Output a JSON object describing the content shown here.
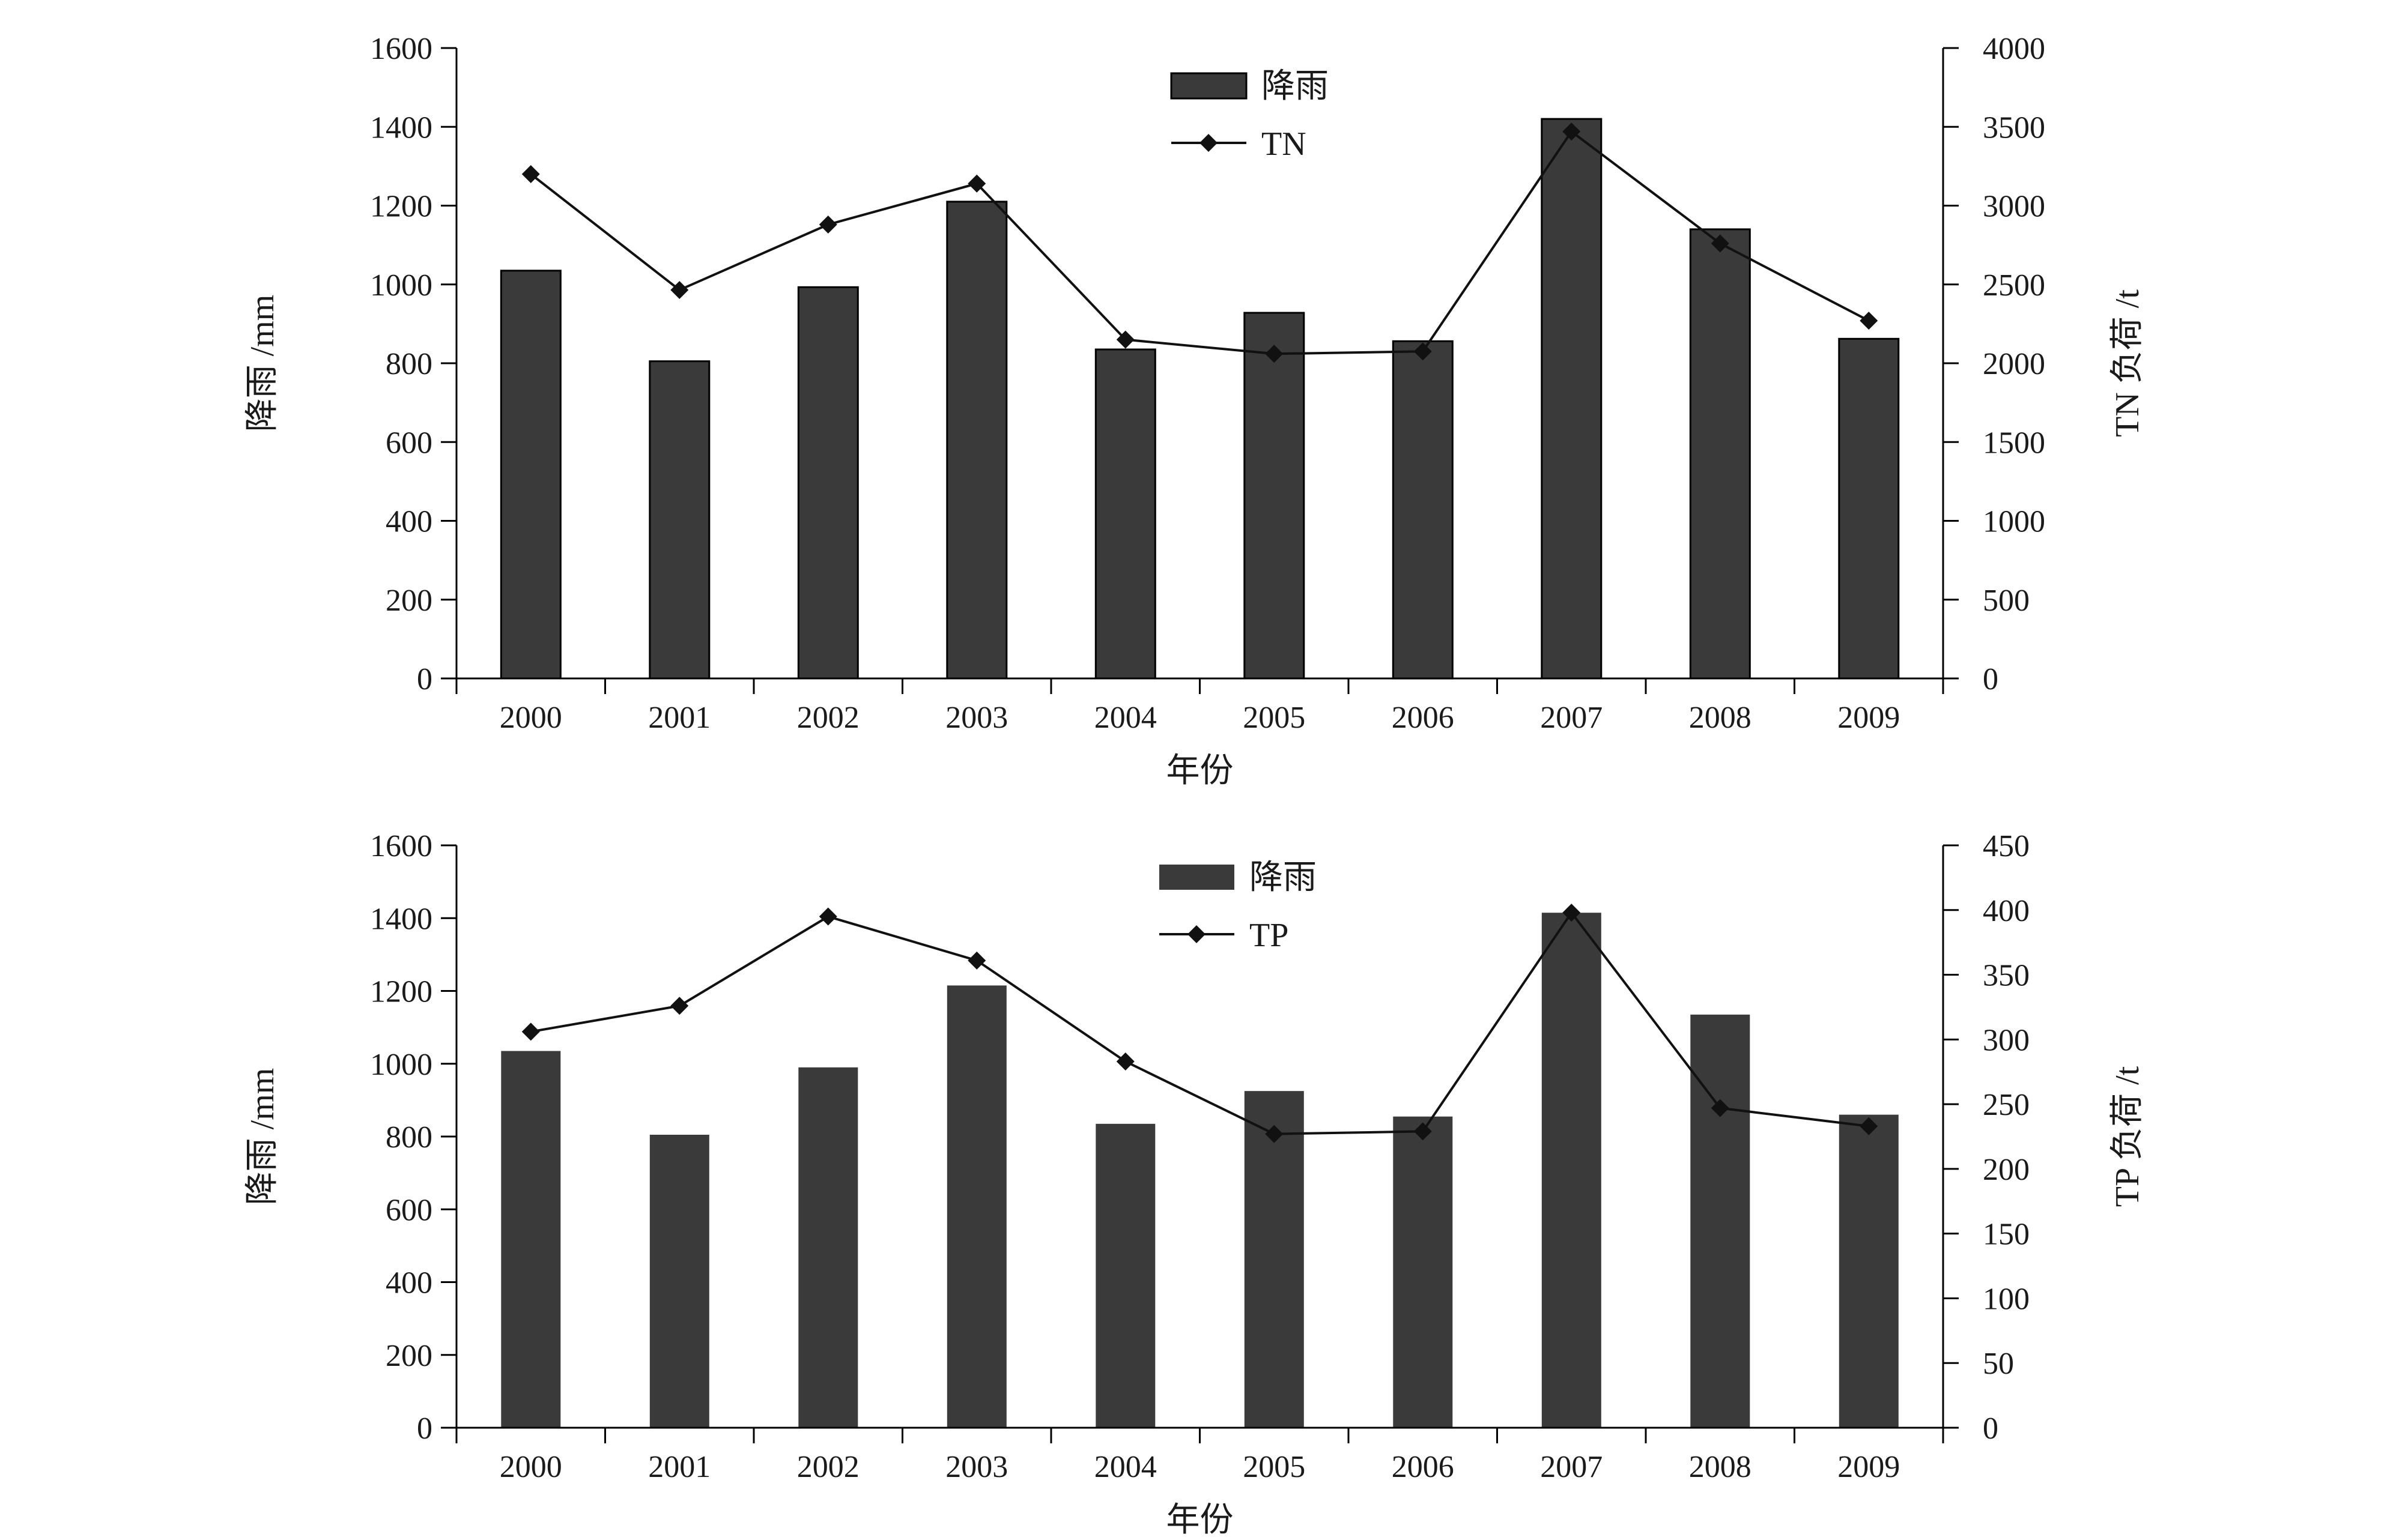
{
  "chart_data": [
    {
      "type": "bar",
      "categories": [
        "2000",
        "2001",
        "2002",
        "2003",
        "2004",
        "2005",
        "2006",
        "2007",
        "2008",
        "2009"
      ],
      "xlabel": "年份",
      "ylabel": "降雨 /mm",
      "y2label": "TN 负荷 /t",
      "ylim": [
        0,
        1600
      ],
      "yticks": [
        "0",
        "200",
        "400",
        "600",
        "800",
        "1000",
        "1200",
        "1400",
        "1600"
      ],
      "y2lim": [
        0,
        4000
      ],
      "y2ticks": [
        "0",
        "500",
        "1000",
        "1500",
        "2000",
        "2500",
        "3000",
        "3500",
        "4000"
      ],
      "legend_position": "top-center",
      "grid": false,
      "series": [
        {
          "name": "降雨",
          "kind": "bar",
          "axis": "left",
          "color": "#3a3a3a",
          "values": [
            1035,
            805,
            993,
            1210,
            835,
            928,
            856,
            1420,
            1140,
            862
          ]
        },
        {
          "name": "TN",
          "kind": "line",
          "axis": "right",
          "color": "#111111",
          "values": [
            3200,
            2465,
            2880,
            3140,
            2150,
            2060,
            2075,
            3470,
            2760,
            2270
          ]
        }
      ]
    },
    {
      "type": "bar",
      "categories": [
        "2000",
        "2001",
        "2002",
        "2003",
        "2004",
        "2005",
        "2006",
        "2007",
        "2008",
        "2009"
      ],
      "xlabel": "年份",
      "ylabel": "降雨 /mm",
      "y2label": "TP 负荷 /t",
      "ylim": [
        0,
        1600
      ],
      "yticks": [
        "0",
        "200",
        "400",
        "600",
        "800",
        "1000",
        "1200",
        "1400",
        "1600"
      ],
      "y2lim": [
        0,
        450
      ],
      "y2ticks": [
        "0",
        "50",
        "100",
        "150",
        "200",
        "250",
        "300",
        "350",
        "400",
        "450"
      ],
      "legend_position": "top-center",
      "grid": false,
      "series": [
        {
          "name": "降雨",
          "kind": "bar",
          "axis": "left",
          "color": "#3a3a3a",
          "values": [
            1035,
            805,
            990,
            1215,
            835,
            925,
            855,
            1415,
            1135,
            860
          ]
        },
        {
          "name": "TP",
          "kind": "line",
          "axis": "right",
          "color": "#111111",
          "values": [
            306,
            326,
            395,
            361,
            283,
            227,
            229,
            398,
            247,
            233
          ]
        }
      ]
    }
  ]
}
